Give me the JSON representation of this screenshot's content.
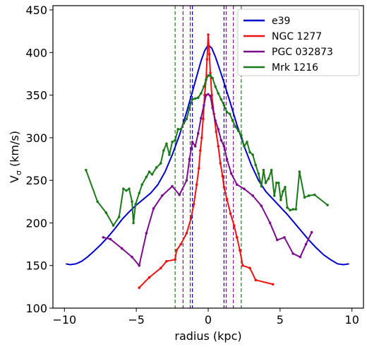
{
  "chart_data": {
    "type": "line",
    "title": "",
    "xlabel": "radius (kpc)",
    "ylabel": "Vσ (km/s)",
    "ylabel_main": "V",
    "ylabel_sub": "σ",
    "ylabel_rest": " (km/s)",
    "xlim": [
      -10.8,
      10.8
    ],
    "ylim": [
      100,
      455
    ],
    "xticks": [
      -10,
      -5,
      0,
      5,
      10
    ],
    "yticks": [
      100,
      150,
      200,
      250,
      300,
      350,
      400,
      450
    ],
    "grid": false,
    "legend_position": "top-right",
    "series": [
      {
        "name": "e39",
        "color": "#0000cc",
        "marker": false,
        "points": [
          [
            -9.9,
            152
          ],
          [
            -9.6,
            151
          ],
          [
            -9.2,
            152
          ],
          [
            -8.8,
            155
          ],
          [
            -8.4,
            160
          ],
          [
            -8.0,
            166
          ],
          [
            -7.5,
            174
          ],
          [
            -7.0,
            183
          ],
          [
            -6.5,
            193
          ],
          [
            -6.0,
            204
          ],
          [
            -5.5,
            213
          ],
          [
            -5.0,
            221
          ],
          [
            -4.5,
            228
          ],
          [
            -4.0,
            235
          ],
          [
            -3.5,
            245
          ],
          [
            -3.0,
            260
          ],
          [
            -2.5,
            280
          ],
          [
            -2.0,
            303
          ],
          [
            -1.5,
            330
          ],
          [
            -1.0,
            360
          ],
          [
            -0.5,
            390
          ],
          [
            -0.25,
            402
          ],
          [
            0.0,
            409
          ],
          [
            0.25,
            405
          ],
          [
            0.5,
            395
          ],
          [
            1.0,
            370
          ],
          [
            1.5,
            343
          ],
          [
            2.0,
            315
          ],
          [
            2.5,
            290
          ],
          [
            3.0,
            268
          ],
          [
            3.5,
            250
          ],
          [
            4.0,
            237
          ],
          [
            4.5,
            228
          ],
          [
            5.0,
            219
          ],
          [
            5.5,
            210
          ],
          [
            6.0,
            200
          ],
          [
            6.5,
            190
          ],
          [
            7.0,
            180
          ],
          [
            7.5,
            171
          ],
          [
            8.0,
            163
          ],
          [
            8.5,
            157
          ],
          [
            9.0,
            152
          ],
          [
            9.4,
            151
          ],
          [
            9.8,
            152
          ]
        ]
      },
      {
        "name": "NGC 1277",
        "color": "#ee1111",
        "marker": true,
        "points": [
          [
            -4.8,
            124
          ],
          [
            -4.1,
            136
          ],
          [
            -3.3,
            147
          ],
          [
            -2.9,
            155
          ],
          [
            -2.3,
            157
          ],
          [
            -2.2,
            168
          ],
          [
            -1.9,
            175
          ],
          [
            -1.5,
            188
          ],
          [
            -1.2,
            205
          ],
          [
            -1.0,
            222
          ],
          [
            -0.8,
            245
          ],
          [
            -0.65,
            264
          ],
          [
            -0.55,
            285
          ],
          [
            -0.45,
            300
          ],
          [
            -0.35,
            322
          ],
          [
            -0.25,
            350
          ],
          [
            -0.15,
            368
          ],
          [
            -0.08,
            392
          ],
          [
            0.0,
            421
          ],
          [
            0.08,
            398
          ],
          [
            0.15,
            376
          ],
          [
            0.25,
            350
          ],
          [
            0.4,
            328
          ],
          [
            0.55,
            307
          ],
          [
            0.7,
            290
          ],
          [
            0.85,
            270
          ],
          [
            1.0,
            255
          ],
          [
            1.1,
            242
          ],
          [
            1.3,
            228
          ],
          [
            1.55,
            211
          ],
          [
            1.8,
            197
          ],
          [
            2.0,
            183
          ],
          [
            2.2,
            168
          ],
          [
            2.4,
            150
          ],
          [
            2.9,
            147
          ],
          [
            3.3,
            133
          ],
          [
            4.5,
            128
          ]
        ]
      },
      {
        "name": "PGC 032873",
        "color": "#7b0c8c",
        "marker": true,
        "points": [
          [
            -7.3,
            183
          ],
          [
            -6.8,
            181
          ],
          [
            -6.0,
            170
          ],
          [
            -5.3,
            160
          ],
          [
            -4.8,
            150
          ],
          [
            -4.3,
            188
          ],
          [
            -3.8,
            217
          ],
          [
            -3.2,
            232
          ],
          [
            -2.5,
            243
          ],
          [
            -2.0,
            233
          ],
          [
            -1.5,
            250
          ],
          [
            -1.3,
            275
          ],
          [
            -1.1,
            295
          ],
          [
            -0.9,
            290
          ],
          [
            -0.7,
            305
          ],
          [
            -0.5,
            323
          ],
          [
            -0.3,
            338
          ],
          [
            -0.15,
            350
          ],
          [
            0.0,
            351
          ],
          [
            0.15,
            349
          ],
          [
            0.3,
            335
          ],
          [
            0.5,
            320
          ],
          [
            0.7,
            310
          ],
          [
            0.9,
            297
          ],
          [
            1.1,
            290
          ],
          [
            1.3,
            275
          ],
          [
            1.6,
            258
          ],
          [
            2.0,
            245
          ],
          [
            2.5,
            240
          ],
          [
            3.1,
            232
          ],
          [
            3.7,
            220
          ],
          [
            4.3,
            200
          ],
          [
            4.8,
            180
          ],
          [
            5.3,
            183
          ],
          [
            5.9,
            164
          ],
          [
            6.4,
            160
          ],
          [
            6.8,
            175
          ],
          [
            7.2,
            189
          ]
        ]
      },
      {
        "name": "Mrk 1216",
        "color": "#1a7a1a",
        "marker": true,
        "points": [
          [
            -8.5,
            262
          ],
          [
            -7.7,
            225
          ],
          [
            -7.1,
            212
          ],
          [
            -6.6,
            197
          ],
          [
            -6.2,
            207
          ],
          [
            -5.9,
            240
          ],
          [
            -5.7,
            238
          ],
          [
            -5.5,
            240
          ],
          [
            -5.3,
            225
          ],
          [
            -5.2,
            200
          ],
          [
            -5.05,
            222
          ],
          [
            -4.8,
            235
          ],
          [
            -4.6,
            245
          ],
          [
            -4.3,
            254
          ],
          [
            -4.1,
            260
          ],
          [
            -3.9,
            257
          ],
          [
            -3.6,
            265
          ],
          [
            -3.3,
            270
          ],
          [
            -3.1,
            285
          ],
          [
            -2.9,
            293
          ],
          [
            -2.7,
            280
          ],
          [
            -2.5,
            295
          ],
          [
            -2.3,
            297
          ],
          [
            -2.1,
            310
          ],
          [
            -1.9,
            310
          ],
          [
            -1.7,
            317
          ],
          [
            -1.5,
            322
          ],
          [
            -1.3,
            335
          ],
          [
            -1.1,
            345
          ],
          [
            -0.9,
            346
          ],
          [
            -0.7,
            347
          ],
          [
            -0.5,
            352
          ],
          [
            -0.3,
            360
          ],
          [
            -0.15,
            368
          ],
          [
            0.0,
            373
          ],
          [
            0.15,
            373
          ],
          [
            0.3,
            370
          ],
          [
            0.5,
            360
          ],
          [
            0.7,
            352
          ],
          [
            0.9,
            345
          ],
          [
            1.1,
            338
          ],
          [
            1.3,
            330
          ],
          [
            1.5,
            328
          ],
          [
            1.7,
            320
          ],
          [
            1.9,
            313
          ],
          [
            2.1,
            308
          ],
          [
            2.3,
            303
          ],
          [
            2.5,
            290
          ],
          [
            2.7,
            295
          ],
          [
            2.9,
            283
          ],
          [
            3.1,
            280
          ],
          [
            3.3,
            268
          ],
          [
            3.5,
            258
          ],
          [
            3.7,
            243
          ],
          [
            3.85,
            262
          ],
          [
            4.0,
            247
          ],
          [
            4.2,
            252
          ],
          [
            4.4,
            262
          ],
          [
            4.6,
            232
          ],
          [
            4.75,
            247
          ],
          [
            4.9,
            247
          ],
          [
            5.05,
            227
          ],
          [
            5.2,
            237
          ],
          [
            5.35,
            242
          ],
          [
            5.5,
            218
          ],
          [
            5.7,
            215
          ],
          [
            5.9,
            216
          ],
          [
            6.1,
            216
          ],
          [
            6.35,
            260
          ],
          [
            6.7,
            230
          ],
          [
            7.0,
            232
          ],
          [
            7.4,
            233
          ],
          [
            8.3,
            221
          ]
        ]
      }
    ],
    "vertical_lines": [
      {
        "x": -2.3,
        "color": "#1a7a1a"
      },
      {
        "x": 2.3,
        "color": "#1a7a1a"
      },
      {
        "x": -1.75,
        "color": "#7b0c8c"
      },
      {
        "x": 1.75,
        "color": "#7b0c8c"
      },
      {
        "x": -1.25,
        "color": "#7b0c8c"
      },
      {
        "x": 1.25,
        "color": "#7b0c8c"
      },
      {
        "x": -1.1,
        "color": "#0000cc"
      },
      {
        "x": 1.1,
        "color": "#0000cc"
      }
    ]
  }
}
